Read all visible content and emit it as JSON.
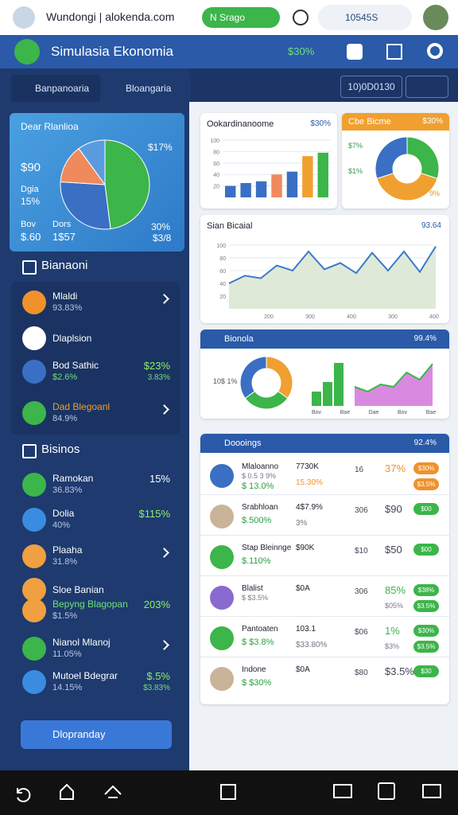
{
  "browser": {
    "url": "Wundongi | alokenda.com",
    "pill": "N Srago",
    "badge": "10545S"
  },
  "header": {
    "title": "Simulasia Ekonomia",
    "stat": "$30%"
  },
  "sidebar": {
    "search": [
      "Banpanoaria",
      "Bloangaria"
    ],
    "summary": {
      "title": "Dear Rlanlioa",
      "stats": [
        "$90",
        "Dgia",
        "15%",
        "Bov",
        "$.60",
        "Dors",
        "1$57"
      ],
      "callouts": [
        "$17%",
        "30%",
        "$3/8"
      ],
      "pie": {
        "values": [
          48,
          28,
          14,
          10
        ],
        "colors": [
          "#3cb54a",
          "#3a6fc4",
          "#f08a5d",
          "#5a9be0"
        ]
      }
    },
    "sections": [
      {
        "title": "Bianaoni",
        "items": [
          {
            "name": "Mlaldi",
            "sub": "93.83%",
            "icon": "#f0912c"
          },
          {
            "name": "Dlaplsion",
            "icon": "#ffffff"
          },
          {
            "name": "Bod Sathic",
            "sub": "$2.6%",
            "value": "$23%",
            "value2": "3.83%",
            "icon": "#3a6fc4"
          },
          {
            "name": "Dad Blegoanl",
            "sub": "84.9%",
            "icon": "#3cb54a"
          }
        ]
      },
      {
        "title": "Bisinos",
        "items": [
          {
            "name": "Ramokan",
            "sub": "36.83%",
            "value": "15%",
            "icon": "#3cb54a"
          },
          {
            "name": "Dolia",
            "sub": "40%",
            "value": "$115%",
            "icon": "#3a8ce0"
          },
          {
            "name": "Plaaha",
            "sub": "31.8%",
            "icon": "#f0a040"
          },
          {
            "name": "Sloe Banian",
            "icon": "#f0a040"
          },
          {
            "name": "Bepyng Blagopan",
            "sub": "$1.5%",
            "value": "203%",
            "icon": "#f0a040"
          },
          {
            "name": "Nianol Mlanoj",
            "sub": "11.05%",
            "icon": "#3cb54a"
          },
          {
            "name": "Mutoel Bdegrar",
            "sub": "14.15%",
            "value": "$.5%",
            "value2": "$3.83%",
            "icon": "#3a8ce0"
          }
        ]
      }
    ],
    "dropdown": "Dlopranday"
  },
  "main": {
    "tab": "10)0D0130",
    "bar_card": {
      "title": "Ookardinanoome",
      "stat": "$30%",
      "values": [
        20,
        25,
        28,
        40,
        45,
        72,
        78
      ],
      "colors": [
        "#3a6fc4",
        "#3a6fc4",
        "#3a6fc4",
        "#f08a5d",
        "#3a6fc4",
        "#f0a030",
        "#3cb54a"
      ],
      "ylim": [
        0,
        100
      ],
      "yticks": [
        20,
        40,
        60,
        80,
        100
      ]
    },
    "donut_card": {
      "title": "Cbe Bicme",
      "stat": "$30%",
      "values": [
        30,
        40,
        30
      ],
      "colors": [
        "#3cb54a",
        "#f0a030",
        "#3a6fc4"
      ],
      "labels": [
        "$7%",
        "$1%",
        "9%"
      ]
    },
    "line_card": {
      "title": "Sian Bicaial",
      "stat": "93.64",
      "values": [
        40,
        52,
        48,
        68,
        60,
        90,
        62,
        72,
        56,
        88,
        60,
        90,
        58,
        98
      ],
      "ylim": [
        0,
        110
      ],
      "yticks": [
        20,
        40,
        60,
        80,
        100
      ],
      "xlabels": [
        "200",
        "300",
        "400",
        "300",
        "400"
      ]
    },
    "mix_card": {
      "title": "Bionola",
      "stat": "99.4%",
      "label": "10$ 1%",
      "donut": [
        35,
        30,
        35
      ],
      "donut_colors": [
        "#f0a030",
        "#3cb54a",
        "#3a6fc4"
      ],
      "bars": [
        30,
        50,
        90
      ],
      "area": [
        40,
        30,
        45,
        40,
        70,
        55,
        88
      ],
      "xlabels": [
        "Bov",
        "Bae",
        "Dae",
        "Bov",
        "Bae"
      ]
    },
    "table": {
      "title": "Doooings",
      "stat": "92.4%",
      "rows": [
        {
          "name": "Mlaloanno",
          "sub": "$ 0.5 3 9%",
          "amount": "$ 13.0%",
          "value": "7730K",
          "value2": "15.30%",
          "count": "16",
          "pct": "37%",
          "pill": "$30%",
          "pill2": "$3.5%",
          "pill_color": "#f0912c"
        },
        {
          "name": "Srabhloan",
          "amount": "$.500%",
          "value": "4$7.9%",
          "value2": "3%",
          "count": "306",
          "pct": "$90",
          "pill": "$00",
          "pill_color": "#3cb54a"
        },
        {
          "name": "Stap Bleinnge",
          "amount": "$.110%",
          "value": "$90K",
          "count": "$10",
          "pct": "$50",
          "pill": "$00",
          "pill_color": "#3cb54a"
        },
        {
          "name": "Blalist",
          "sub": "$ $3.5%",
          "value": "$0A",
          "count": "306",
          "pct": "85%",
          "pct2": "$05%",
          "pill": "$38%",
          "pill2": "$3.5%",
          "pill_color": "#3cb54a"
        },
        {
          "name": "Pantoaten",
          "amount": "$ $3.8%",
          "value": "103.1",
          "value2": "$33.80%",
          "count": "$06",
          "pct": "1%",
          "pct2": "$3%",
          "pill": "$30%",
          "pill2": "$3.5%",
          "pill_color": "#3cb54a"
        },
        {
          "name": "Indone",
          "amount": "$ $30%",
          "value": "$0A",
          "count": "$80",
          "pct": "$3.5%",
          "pill": "$30",
          "pill_color": "#3cb54a"
        }
      ]
    }
  }
}
